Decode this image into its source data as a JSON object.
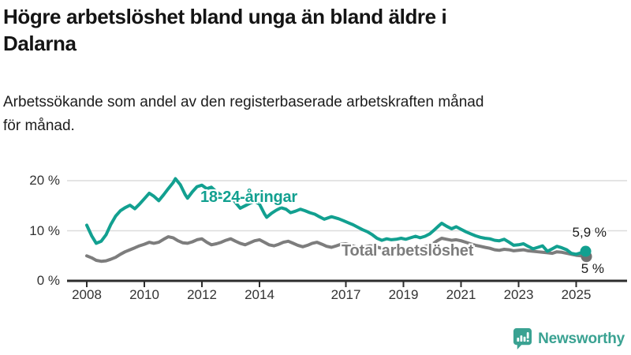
{
  "header": {
    "title_lines": [
      "Högre arbetslöshet bland unga än bland äldre i",
      "Dalarna"
    ],
    "subtitle_lines": [
      "Arbetssökande som andel av den registerbaserade arbetskraften månad",
      "för månad."
    ]
  },
  "branding": {
    "logo_text": "Newsworthy",
    "logo_icon": "bar-chart-speech-bubble-icon",
    "logo_color": "#3aa292"
  },
  "chart_data": {
    "type": "line",
    "title": "Högre arbetslöshet bland unga än bland äldre i Dalarna",
    "subtitle": "Arbetssökande som andel av den registerbaserade arbetskraften månad för månad.",
    "xlabel": "",
    "ylabel": "",
    "grid": "horizontal",
    "xlim": [
      2007.3,
      2026.2
    ],
    "ylim": [
      0,
      22
    ],
    "x_ticks": [
      {
        "year": 2008,
        "label": "2008"
      },
      {
        "year": 2010,
        "label": "2010"
      },
      {
        "year": 2012,
        "label": "2012"
      },
      {
        "year": 2014,
        "label": "2014"
      },
      {
        "year": 2017,
        "label": "2017"
      },
      {
        "year": 2019,
        "label": "2019"
      },
      {
        "year": 2021,
        "label": "2021"
      },
      {
        "year": 2023,
        "label": "2023"
      },
      {
        "year": 2025,
        "label": "2025"
      }
    ],
    "y_ticks": [
      {
        "value": 0,
        "label": "0 %"
      },
      {
        "value": 10,
        "label": "10 %"
      },
      {
        "value": 20,
        "label": "20 %"
      }
    ],
    "colors": {
      "youth": "#12a090",
      "total": "#7d7d7d",
      "total_dot": "#707070",
      "grid": "#dcdcdc",
      "axis": "#2d2d2d"
    },
    "series": [
      {
        "name": "18-24-åringar",
        "color": "#12a090",
        "end_label": "5,9 %",
        "end_value": 5.9,
        "points": [
          [
            2008.0,
            11.1
          ],
          [
            2008.17,
            9.0
          ],
          [
            2008.33,
            7.5
          ],
          [
            2008.5,
            7.9
          ],
          [
            2008.67,
            9.2
          ],
          [
            2008.83,
            11.2
          ],
          [
            2009.0,
            12.9
          ],
          [
            2009.17,
            14.0
          ],
          [
            2009.33,
            14.6
          ],
          [
            2009.5,
            15.1
          ],
          [
            2009.67,
            14.4
          ],
          [
            2009.83,
            15.3
          ],
          [
            2010.0,
            16.4
          ],
          [
            2010.17,
            17.5
          ],
          [
            2010.33,
            16.9
          ],
          [
            2010.5,
            16.0
          ],
          [
            2010.67,
            17.2
          ],
          [
            2010.83,
            18.4
          ],
          [
            2011.0,
            19.6
          ],
          [
            2011.08,
            20.4
          ],
          [
            2011.25,
            19.2
          ],
          [
            2011.42,
            17.2
          ],
          [
            2011.5,
            16.5
          ],
          [
            2011.67,
            17.8
          ],
          [
            2011.83,
            18.8
          ],
          [
            2012.0,
            19.1
          ],
          [
            2012.17,
            18.4
          ],
          [
            2012.33,
            18.7
          ],
          [
            2012.5,
            17.8
          ],
          [
            2012.67,
            17.1
          ],
          [
            2012.83,
            17.5
          ],
          [
            2013.0,
            16.9
          ],
          [
            2013.17,
            15.6
          ],
          [
            2013.33,
            14.5
          ],
          [
            2013.5,
            15.0
          ],
          [
            2013.67,
            15.5
          ],
          [
            2013.83,
            15.9
          ],
          [
            2014.0,
            15.3
          ],
          [
            2014.17,
            13.4
          ],
          [
            2014.25,
            12.7
          ],
          [
            2014.42,
            13.5
          ],
          [
            2014.58,
            14.1
          ],
          [
            2014.75,
            14.6
          ],
          [
            2014.92,
            14.3
          ],
          [
            2015.08,
            13.6
          ],
          [
            2015.25,
            13.9
          ],
          [
            2015.42,
            14.3
          ],
          [
            2015.58,
            14.0
          ],
          [
            2015.75,
            13.6
          ],
          [
            2015.92,
            13.3
          ],
          [
            2016.08,
            12.8
          ],
          [
            2016.25,
            12.3
          ],
          [
            2016.5,
            12.8
          ],
          [
            2016.75,
            12.4
          ],
          [
            2016.92,
            12.0
          ],
          [
            2017.08,
            11.6
          ],
          [
            2017.25,
            11.2
          ],
          [
            2017.42,
            10.7
          ],
          [
            2017.58,
            10.2
          ],
          [
            2017.75,
            9.8
          ],
          [
            2017.92,
            9.2
          ],
          [
            2018.08,
            8.5
          ],
          [
            2018.25,
            8.1
          ],
          [
            2018.42,
            8.4
          ],
          [
            2018.58,
            8.2
          ],
          [
            2018.75,
            8.3
          ],
          [
            2018.92,
            8.5
          ],
          [
            2019.08,
            8.3
          ],
          [
            2019.25,
            8.6
          ],
          [
            2019.42,
            8.9
          ],
          [
            2019.58,
            8.6
          ],
          [
            2019.75,
            8.9
          ],
          [
            2019.92,
            9.4
          ],
          [
            2020.08,
            10.2
          ],
          [
            2020.25,
            11.1
          ],
          [
            2020.33,
            11.5
          ],
          [
            2020.5,
            10.9
          ],
          [
            2020.67,
            10.4
          ],
          [
            2020.83,
            10.8
          ],
          [
            2021.0,
            10.3
          ],
          [
            2021.17,
            9.8
          ],
          [
            2021.33,
            9.4
          ],
          [
            2021.5,
            9.0
          ],
          [
            2021.67,
            8.7
          ],
          [
            2021.83,
            8.5
          ],
          [
            2022.0,
            8.4
          ],
          [
            2022.17,
            8.1
          ],
          [
            2022.33,
            8.0
          ],
          [
            2022.5,
            8.3
          ],
          [
            2022.67,
            7.7
          ],
          [
            2022.83,
            7.1
          ],
          [
            2023.0,
            7.2
          ],
          [
            2023.17,
            7.4
          ],
          [
            2023.33,
            6.9
          ],
          [
            2023.5,
            6.4
          ],
          [
            2023.67,
            6.7
          ],
          [
            2023.83,
            7.0
          ],
          [
            2024.0,
            5.9
          ],
          [
            2024.17,
            6.4
          ],
          [
            2024.33,
            6.9
          ],
          [
            2024.5,
            6.6
          ],
          [
            2024.67,
            6.2
          ],
          [
            2024.83,
            5.5
          ],
          [
            2025.0,
            5.3
          ],
          [
            2025.17,
            5.6
          ],
          [
            2025.33,
            5.9
          ]
        ]
      },
      {
        "name": "Total arbetslöshet",
        "color": "#7d7d7d",
        "end_label": "5 %",
        "end_value": 5.0,
        "points": [
          [
            2008.0,
            5.0
          ],
          [
            2008.17,
            4.6
          ],
          [
            2008.33,
            4.1
          ],
          [
            2008.5,
            3.9
          ],
          [
            2008.67,
            4.0
          ],
          [
            2008.83,
            4.3
          ],
          [
            2009.0,
            4.7
          ],
          [
            2009.17,
            5.3
          ],
          [
            2009.33,
            5.8
          ],
          [
            2009.5,
            6.2
          ],
          [
            2009.67,
            6.6
          ],
          [
            2009.83,
            7.0
          ],
          [
            2010.0,
            7.3
          ],
          [
            2010.17,
            7.7
          ],
          [
            2010.33,
            7.5
          ],
          [
            2010.5,
            7.7
          ],
          [
            2010.67,
            8.3
          ],
          [
            2010.83,
            8.8
          ],
          [
            2011.0,
            8.6
          ],
          [
            2011.17,
            8.0
          ],
          [
            2011.33,
            7.6
          ],
          [
            2011.5,
            7.5
          ],
          [
            2011.67,
            7.8
          ],
          [
            2011.83,
            8.2
          ],
          [
            2012.0,
            8.4
          ],
          [
            2012.17,
            7.7
          ],
          [
            2012.33,
            7.2
          ],
          [
            2012.5,
            7.4
          ],
          [
            2012.67,
            7.7
          ],
          [
            2012.83,
            8.1
          ],
          [
            2013.0,
            8.4
          ],
          [
            2013.17,
            7.9
          ],
          [
            2013.33,
            7.5
          ],
          [
            2013.5,
            7.2
          ],
          [
            2013.67,
            7.6
          ],
          [
            2013.83,
            8.0
          ],
          [
            2014.0,
            8.2
          ],
          [
            2014.17,
            7.7
          ],
          [
            2014.33,
            7.2
          ],
          [
            2014.5,
            7.0
          ],
          [
            2014.67,
            7.3
          ],
          [
            2014.83,
            7.7
          ],
          [
            2015.0,
            7.9
          ],
          [
            2015.17,
            7.5
          ],
          [
            2015.33,
            7.1
          ],
          [
            2015.5,
            6.8
          ],
          [
            2015.67,
            7.1
          ],
          [
            2015.83,
            7.5
          ],
          [
            2016.0,
            7.7
          ],
          [
            2016.17,
            7.3
          ],
          [
            2016.33,
            6.9
          ],
          [
            2016.5,
            6.7
          ],
          [
            2016.67,
            7.0
          ],
          [
            2016.83,
            7.3
          ],
          [
            2017.0,
            7.4
          ],
          [
            2017.17,
            7.1
          ],
          [
            2017.33,
            6.8
          ],
          [
            2017.5,
            6.6
          ],
          [
            2017.67,
            6.8
          ],
          [
            2017.83,
            7.0
          ],
          [
            2018.0,
            6.9
          ],
          [
            2018.17,
            6.6
          ],
          [
            2018.33,
            6.4
          ],
          [
            2018.5,
            6.3
          ],
          [
            2018.67,
            6.5
          ],
          [
            2018.83,
            6.7
          ],
          [
            2019.0,
            6.6
          ],
          [
            2019.17,
            6.4
          ],
          [
            2019.33,
            6.3
          ],
          [
            2019.5,
            6.5
          ],
          [
            2019.67,
            6.7
          ],
          [
            2019.83,
            7.0
          ],
          [
            2020.0,
            7.3
          ],
          [
            2020.17,
            8.0
          ],
          [
            2020.33,
            8.5
          ],
          [
            2020.5,
            8.3
          ],
          [
            2020.67,
            8.1
          ],
          [
            2020.83,
            8.2
          ],
          [
            2021.0,
            8.0
          ],
          [
            2021.17,
            7.7
          ],
          [
            2021.33,
            7.4
          ],
          [
            2021.5,
            7.1
          ],
          [
            2021.67,
            6.9
          ],
          [
            2021.83,
            6.7
          ],
          [
            2022.0,
            6.5
          ],
          [
            2022.17,
            6.2
          ],
          [
            2022.33,
            6.1
          ],
          [
            2022.5,
            6.3
          ],
          [
            2022.67,
            6.2
          ],
          [
            2022.83,
            6.0
          ],
          [
            2023.0,
            6.1
          ],
          [
            2023.17,
            6.2
          ],
          [
            2023.33,
            6.0
          ],
          [
            2023.5,
            5.9
          ],
          [
            2023.67,
            5.8
          ],
          [
            2023.83,
            5.7
          ],
          [
            2024.0,
            5.6
          ],
          [
            2024.17,
            5.5
          ],
          [
            2024.33,
            5.8
          ],
          [
            2024.5,
            5.7
          ],
          [
            2024.67,
            5.5
          ],
          [
            2024.83,
            5.3
          ],
          [
            2025.0,
            5.1
          ],
          [
            2025.17,
            5.0
          ],
          [
            2025.33,
            5.0
          ]
        ]
      }
    ]
  }
}
